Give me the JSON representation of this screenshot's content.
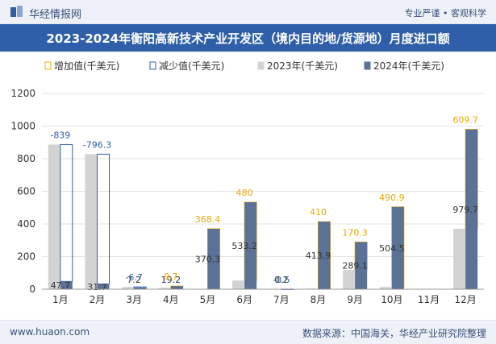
{
  "header": {
    "brand": "华经情报网",
    "tagline": "专业严谨 • 客观科学",
    "title": "2023-2024年衡阳高新技术产业开发区（境内目的地/货源地）月度进口额"
  },
  "footer": {
    "site": "www.huaon.com",
    "source": "数据来源：中国海关，华经产业研究院整理"
  },
  "colors": {
    "increase": "#f0b400",
    "decrease": "#2f5fa8",
    "y2023": "#d3d3d3",
    "y2024": "#5b7196",
    "increase_label": "#e6a800",
    "decrease_label": "#2f5fa8"
  },
  "chart_data": {
    "type": "bar",
    "title": "2023-2024年衡阳高新技术产业开发区（境内目的地/货源地）月度进口额",
    "unit": "千美元",
    "legend": [
      "增加值(千美元)",
      "减少值(千美元)",
      "2023年(千美元)",
      "2024年(千美元)"
    ],
    "legend_position": "top-left",
    "categories": [
      "1月",
      "2月",
      "3月",
      "4月",
      "5月",
      "6月",
      "7月",
      "8月",
      "9月",
      "10月",
      "11月",
      "12月"
    ],
    "series": [
      {
        "name": "2023年(千美元)",
        "values": [
          886.7,
          827.9,
          13.9,
          9.5,
          2.0,
          53.2,
          0.7,
          3.9,
          118.8,
          13.6,
          0,
          370.0
        ]
      },
      {
        "name": "2024年(千美元)",
        "values": [
          47.7,
          31.7,
          7.2,
          19.2,
          370.3,
          533.2,
          0.2,
          413.9,
          289.1,
          504.5,
          0,
          979.7
        ]
      }
    ],
    "change": [
      -839,
      -796.3,
      -6.7,
      9.7,
      368.4,
      480,
      -0.5,
      410,
      170.3,
      490.9,
      null,
      609.7
    ],
    "value_labels_2024": [
      "47.7",
      "31.7",
      "7.2",
      "19.2",
      "370.3",
      "533.2",
      "0.2",
      "413.9",
      "289.1",
      "504.5",
      "",
      "979.7"
    ],
    "change_labels": [
      "-839",
      "-796.3",
      "-6.7",
      "9.7",
      "368.4",
      "480",
      "-0.5",
      "410",
      "170.3",
      "490.9",
      "",
      "609.7"
    ],
    "ylim": [
      0,
      1200
    ],
    "yticks": [
      0,
      200,
      400,
      600,
      800,
      1000,
      1200
    ],
    "grid": true
  }
}
